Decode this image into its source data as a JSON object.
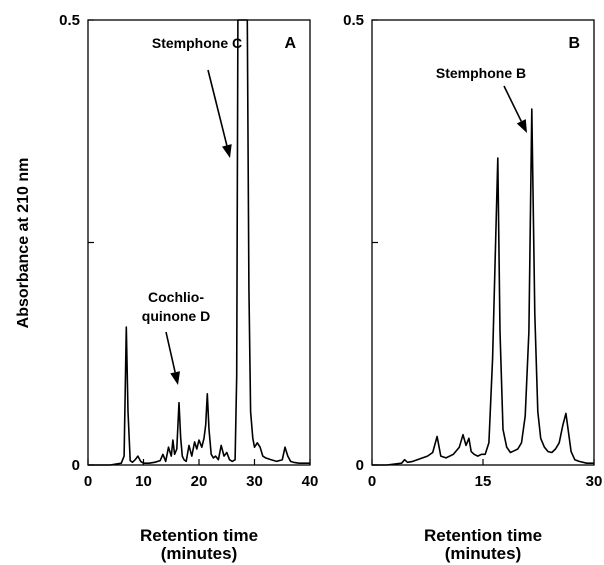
{
  "y_axis_label": "Absorbance at 210 nm",
  "chart_data": [
    {
      "type": "line",
      "panel_label": "A",
      "xlabel": [
        "Retention time",
        "(minutes)"
      ],
      "ylabel": "Absorbance at 210 nm",
      "xlim": [
        0,
        40
      ],
      "ylim": [
        0,
        0.5
      ],
      "x_ticks": [
        0,
        10,
        20,
        30,
        40
      ],
      "y_ticks": [
        0,
        0.25,
        0.5
      ],
      "y_tick_labels": [
        "0",
        "",
        "0.5"
      ],
      "grid": false,
      "annotations": [
        {
          "text": "Stemphone C",
          "x": 27.5,
          "y": 0.34
        },
        {
          "text": [
            "Cochlio-",
            "quinone D"
          ],
          "x": 16.5,
          "y": 0.09
        }
      ],
      "series": [
        {
          "x": [
            0,
            2,
            4,
            6,
            6.5,
            6.9,
            7.2,
            7.6,
            8,
            8.5,
            9,
            9.5,
            10,
            11,
            12,
            13,
            13.5,
            14,
            14.5,
            15,
            15.3,
            15.6,
            16,
            16.4,
            16.7,
            17,
            17.3,
            17.7,
            18.2,
            18.7,
            19.2,
            19.6,
            20,
            20.5,
            20.9,
            21.2,
            21.5,
            21.8,
            22.2,
            22.6,
            23,
            23.5,
            24,
            24.5,
            25,
            25.5,
            26,
            26.5,
            26.8,
            27,
            27.3,
            27.8,
            28.2,
            28.5,
            28.7,
            29,
            29.3,
            29.7,
            30,
            30.5,
            31,
            31.5,
            32,
            33,
            34,
            35,
            35.5,
            36,
            36.5,
            37,
            38,
            40
          ],
          "y": [
            0,
            0,
            0,
            0.002,
            0.01,
            0.155,
            0.06,
            0.005,
            0.003,
            0.006,
            0.01,
            0.004,
            0.002,
            0.002,
            0.003,
            0.005,
            0.012,
            0.004,
            0.02,
            0.01,
            0.028,
            0.012,
            0.018,
            0.07,
            0.03,
            0.01,
            0.006,
            0.004,
            0.022,
            0.01,
            0.026,
            0.018,
            0.028,
            0.02,
            0.03,
            0.045,
            0.08,
            0.04,
            0.012,
            0.008,
            0.01,
            0.006,
            0.022,
            0.01,
            0.014,
            0.006,
            0.004,
            0.006,
            0.1,
            0.5,
            0.5,
            0.5,
            0.5,
            0.5,
            0.5,
            0.2,
            0.06,
            0.03,
            0.02,
            0.025,
            0.02,
            0.01,
            0.008,
            0.006,
            0.004,
            0.006,
            0.02,
            0.01,
            0.004,
            0.003,
            0.002,
            0.002
          ]
        }
      ]
    },
    {
      "type": "line",
      "panel_label": "B",
      "xlabel": [
        "Retention time",
        "(minutes)"
      ],
      "ylabel": "",
      "xlim": [
        0,
        30
      ],
      "ylim": [
        0,
        0.5
      ],
      "x_ticks": [
        0,
        15,
        30
      ],
      "y_ticks": [
        0,
        0.25,
        0.5
      ],
      "y_tick_labels": [
        "0",
        "",
        "0.5"
      ],
      "grid": false,
      "annotations": [
        {
          "text": "Stemphone B",
          "x": 21.8,
          "y": 0.38
        }
      ],
      "series": [
        {
          "x": [
            0,
            2,
            4,
            4.4,
            4.8,
            5.5,
            6.5,
            7.5,
            8.2,
            8.8,
            9.3,
            10,
            11,
            11.8,
            12.3,
            12.7,
            13.1,
            13.4,
            13.8,
            14.3,
            14.8,
            15.3,
            15.8,
            16.3,
            16.7,
            17.0,
            17.3,
            17.7,
            18.2,
            18.7,
            19.2,
            19.7,
            20.2,
            20.7,
            21.2,
            21.6,
            22.0,
            22.4,
            22.8,
            23.3,
            23.8,
            24.3,
            24.8,
            25.3,
            25.8,
            26.2,
            26.5,
            26.9,
            27.4,
            28,
            29,
            30
          ],
          "y": [
            0,
            0,
            0.002,
            0.006,
            0.003,
            0.004,
            0.007,
            0.01,
            0.014,
            0.032,
            0.01,
            0.008,
            0.012,
            0.02,
            0.034,
            0.022,
            0.03,
            0.015,
            0.012,
            0.01,
            0.012,
            0.012,
            0.025,
            0.12,
            0.25,
            0.345,
            0.15,
            0.04,
            0.02,
            0.014,
            0.016,
            0.018,
            0.025,
            0.055,
            0.15,
            0.4,
            0.17,
            0.06,
            0.03,
            0.02,
            0.015,
            0.014,
            0.018,
            0.025,
            0.045,
            0.058,
            0.04,
            0.015,
            0.006,
            0.004,
            0.002,
            0.002
          ]
        }
      ]
    }
  ]
}
